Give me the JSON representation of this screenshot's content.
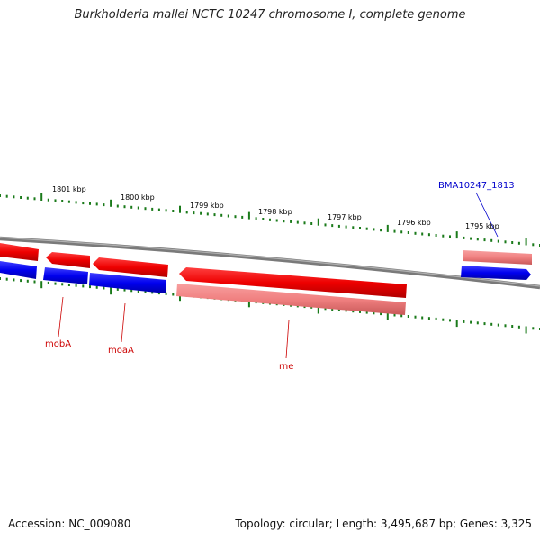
{
  "title": "Burkholderia mallei NCTC 10247 chromosome I, complete genome",
  "footer": {
    "accession": "Accession: NC_009080",
    "summary": "Topology: circular; Length: 3,495,687 bp; Genes: 3,325"
  },
  "scale_labels": [
    "1801 kbp",
    "1800 kbp",
    "1799 kbp",
    "1798 kbp",
    "1797 kbp",
    "1796 kbp",
    "1795 kbp"
  ],
  "gene_labels": [
    {
      "text": "mobA",
      "color": "#cc0000"
    },
    {
      "text": "moaA",
      "color": "#cc0000"
    },
    {
      "text": "rne",
      "color": "#cc0000"
    },
    {
      "text": "BMA10247_1813",
      "color": "#0000cc"
    }
  ],
  "colors": {
    "cds_forward": "#ff0000",
    "cds_reverse": "#0000ff",
    "gene_pale": "#f08080",
    "backbone": "#808080",
    "tick": "#1a7a1a"
  }
}
